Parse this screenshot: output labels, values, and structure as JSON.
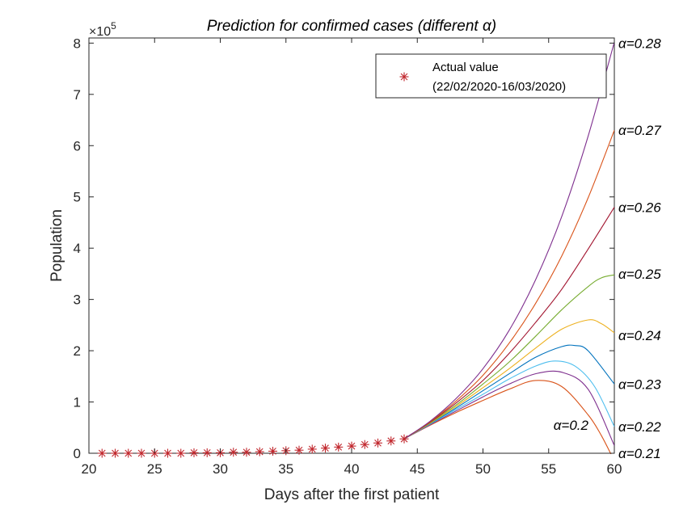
{
  "chart_data": {
    "type": "line",
    "title": "Prediction for confirmed cases (different α)",
    "xlabel": "Days after the first patient",
    "ylabel": "Population",
    "y_multiplier_label": "×10",
    "y_multiplier_exponent": "5",
    "xlim": [
      20,
      60
    ],
    "ylim": [
      0,
      8.1
    ],
    "x_ticks": [
      20,
      25,
      30,
      35,
      40,
      45,
      50,
      55,
      60
    ],
    "y_ticks": [
      0,
      1,
      2,
      3,
      4,
      5,
      6,
      7,
      8
    ],
    "grid": false,
    "legend_position": "top-right",
    "legend": {
      "label_line1": "Actual value",
      "label_line2": "(22/02/2020-16/03/2020)",
      "marker_color": "#c1272d"
    },
    "actual": {
      "name": "Actual value",
      "x": [
        21,
        22,
        23,
        24,
        25,
        26,
        27,
        28,
        29,
        30,
        31,
        32,
        33,
        34,
        35,
        36,
        37,
        38,
        39,
        40,
        41,
        42,
        43,
        44
      ],
      "y": [
        0.0,
        0.0,
        0.0,
        0.0,
        0.0,
        0.0,
        0.0,
        0.01,
        0.01,
        0.01,
        0.02,
        0.02,
        0.03,
        0.04,
        0.05,
        0.06,
        0.08,
        0.1,
        0.12,
        0.14,
        0.17,
        0.2,
        0.24,
        0.28
      ]
    },
    "series": [
      {
        "alpha": "0.2",
        "label": "α=0.2",
        "color": "#d95319",
        "x": [
          44,
          46,
          48,
          50,
          52,
          54,
          56,
          58,
          59,
          60
        ],
        "y": [
          0.28,
          0.55,
          0.8,
          1.03,
          1.25,
          1.42,
          1.3,
          0.75,
          0.35,
          -0.15
        ]
      },
      {
        "alpha": "0.21",
        "label": "α=0.21",
        "color": "#7e2f8e",
        "x": [
          44,
          46,
          48,
          50,
          52,
          54,
          56,
          58,
          60
        ],
        "y": [
          0.28,
          0.56,
          0.83,
          1.1,
          1.35,
          1.55,
          1.58,
          1.25,
          0.15
        ]
      },
      {
        "alpha": "0.22",
        "label": "α=0.22",
        "color": "#4dbeee",
        "x": [
          44,
          46,
          48,
          50,
          52,
          54,
          55.5,
          57,
          58.5,
          60
        ],
        "y": [
          0.28,
          0.57,
          0.86,
          1.15,
          1.45,
          1.7,
          1.8,
          1.7,
          1.3,
          0.52
        ]
      },
      {
        "alpha": "0.23",
        "label": "α=0.23",
        "color": "#0072bd",
        "x": [
          44,
          46,
          48,
          50,
          52,
          54,
          56,
          57,
          58,
          60
        ],
        "y": [
          0.28,
          0.58,
          0.89,
          1.22,
          1.55,
          1.87,
          2.08,
          2.1,
          2.0,
          1.35
        ]
      },
      {
        "alpha": "0.24",
        "label": "α=0.24",
        "color": "#edb120",
        "x": [
          44,
          46,
          48,
          50,
          52,
          54,
          56,
          58,
          59,
          60
        ],
        "y": [
          0.28,
          0.59,
          0.92,
          1.28,
          1.65,
          2.05,
          2.42,
          2.6,
          2.53,
          2.35
        ]
      },
      {
        "alpha": "0.25",
        "label": "α=0.25",
        "color": "#77ac30",
        "x": [
          44,
          46,
          48,
          50,
          52,
          54,
          56,
          58,
          59,
          60
        ],
        "y": [
          0.28,
          0.6,
          0.95,
          1.35,
          1.78,
          2.28,
          2.8,
          3.25,
          3.42,
          3.48
        ]
      },
      {
        "alpha": "0.26",
        "label": "α=0.26",
        "color": "#a2142f",
        "x": [
          44,
          46,
          48,
          50,
          52,
          54,
          56,
          58,
          60
        ],
        "y": [
          0.28,
          0.61,
          0.99,
          1.42,
          1.95,
          2.55,
          3.2,
          3.98,
          4.8
        ]
      },
      {
        "alpha": "0.27",
        "label": "α=0.27",
        "color": "#d95319",
        "x": [
          44,
          46,
          48,
          50,
          52,
          54,
          56,
          58,
          60
        ],
        "y": [
          0.28,
          0.62,
          1.03,
          1.52,
          2.15,
          2.92,
          3.85,
          4.98,
          6.3
        ]
      },
      {
        "alpha": "0.28",
        "label": "α=0.28",
        "color": "#7e2f8e",
        "x": [
          44,
          46,
          48,
          50,
          52,
          54,
          56,
          58,
          60
        ],
        "y": [
          0.28,
          0.63,
          1.08,
          1.65,
          2.4,
          3.38,
          4.62,
          6.18,
          8.02
        ]
      }
    ],
    "curve_labels": [
      {
        "text": "α=0.28",
        "y": 8.0
      },
      {
        "text": "α=0.27",
        "y": 6.3
      },
      {
        "text": "α=0.26",
        "y": 4.8
      },
      {
        "text": "α=0.25",
        "y": 3.5
      },
      {
        "text": "α=0.24",
        "y": 2.3
      },
      {
        "text": "α=0.23",
        "y": 1.35
      },
      {
        "text": "α=0.22",
        "y": 0.52
      },
      {
        "text": "α=0.21",
        "y": 0.0
      }
    ],
    "inner_label": {
      "text": "α=0.2",
      "x": 56.7,
      "y": 0.55
    }
  }
}
